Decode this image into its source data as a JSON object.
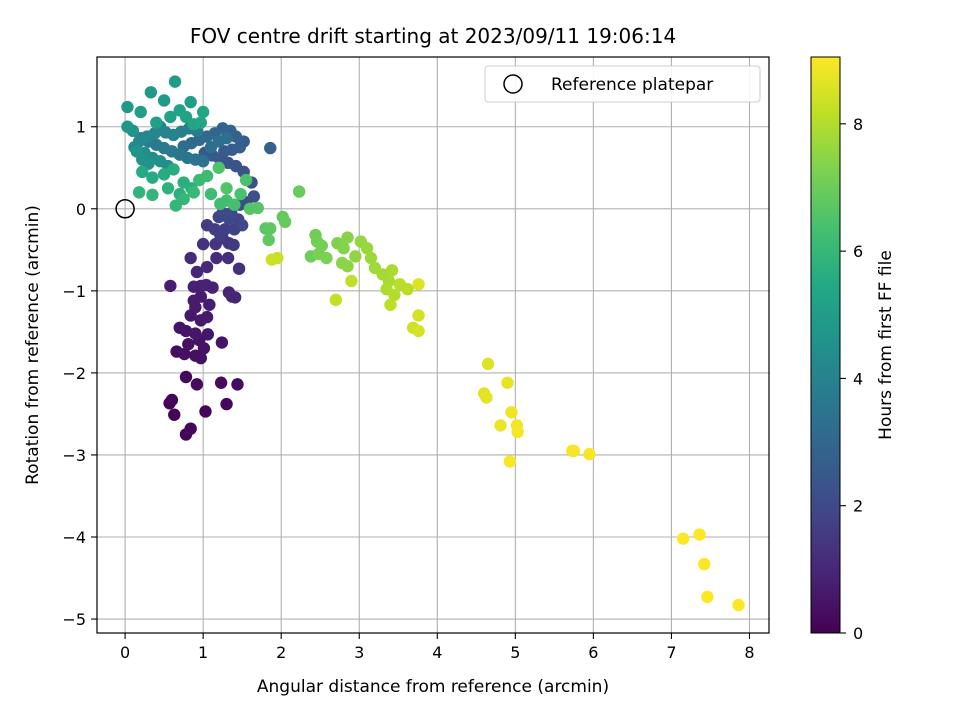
{
  "chart_data": {
    "type": "scatter",
    "title": "FOV centre drift starting at 2023/09/11 19:06:14",
    "xlabel": "Angular distance from reference (arcmin)",
    "ylabel": "Rotation from reference (arcmin)",
    "colorbar_label": "Hours from first FF file",
    "xlim": [
      -0.36,
      8.25
    ],
    "ylim": [
      -5.17,
      1.85
    ],
    "x_ticks": [
      0,
      1,
      2,
      3,
      4,
      5,
      6,
      7,
      8
    ],
    "y_ticks": [
      -5,
      -4,
      -3,
      -2,
      -1,
      0,
      1
    ],
    "colorbar_range": [
      0,
      9.05
    ],
    "colorbar_ticks": [
      0,
      2,
      4,
      6,
      8
    ],
    "colormap": "viridis",
    "grid": true,
    "legend_position": "top-right",
    "legend": [
      {
        "label": "Reference platepar",
        "marker": "open-circle",
        "x": 0,
        "y": 0
      }
    ],
    "series": [
      {
        "points": [
          [
            0.63,
            -2.51,
            0.1
          ],
          [
            0.78,
            -2.75,
            0.1
          ],
          [
            0.84,
            -2.68,
            0.15
          ],
          [
            1.03,
            -2.47,
            0.15
          ],
          [
            0.57,
            -2.37,
            0.1
          ],
          [
            0.6,
            -2.33,
            0.15
          ],
          [
            1.3,
            -2.38,
            0.2
          ],
          [
            0.78,
            -2.05,
            0.2
          ],
          [
            0.92,
            -2.14,
            0.25
          ],
          [
            1.23,
            -2.12,
            0.25
          ],
          [
            1.44,
            -2.14,
            0.3
          ],
          [
            0.66,
            -1.74,
            0.3
          ],
          [
            0.76,
            -1.77,
            0.35
          ],
          [
            0.9,
            -1.79,
            0.35
          ],
          [
            0.97,
            -1.82,
            0.4
          ],
          [
            1.01,
            -1.7,
            0.45
          ],
          [
            0.81,
            -1.65,
            0.4
          ],
          [
            0.95,
            -1.6,
            0.45
          ],
          [
            1.24,
            -1.63,
            0.5
          ],
          [
            0.7,
            -1.45,
            0.5
          ],
          [
            0.78,
            -1.49,
            0.5
          ],
          [
            0.9,
            -1.52,
            0.55
          ],
          [
            1.06,
            -1.53,
            0.55
          ],
          [
            0.97,
            -1.36,
            0.6
          ],
          [
            0.84,
            -1.3,
            0.6
          ],
          [
            0.9,
            -1.2,
            0.65
          ],
          [
            1.05,
            -1.32,
            0.65
          ],
          [
            0.88,
            -1.12,
            0.7
          ],
          [
            0.97,
            -1.07,
            0.7
          ],
          [
            1.08,
            -1.17,
            0.75
          ],
          [
            0.58,
            -0.94,
            0.75
          ],
          [
            0.88,
            -0.95,
            0.8
          ],
          [
            0.97,
            -0.94,
            0.8
          ],
          [
            1.04,
            -0.93,
            0.85
          ],
          [
            1.12,
            -0.96,
            0.85
          ],
          [
            1.33,
            -1.02,
            0.9
          ],
          [
            1.41,
            -1.08,
            0.9
          ],
          [
            1.37,
            -1.07,
            0.95
          ],
          [
            0.92,
            -0.77,
            1.0
          ],
          [
            1.05,
            -0.71,
            1.05
          ],
          [
            0.84,
            -0.6,
            1.1
          ],
          [
            1.17,
            -0.6,
            1.15
          ],
          [
            1.32,
            -0.6,
            1.2
          ],
          [
            1.46,
            -0.73,
            1.25
          ],
          [
            1.0,
            -0.43,
            1.3
          ],
          [
            1.16,
            -0.43,
            1.35
          ],
          [
            1.25,
            -0.36,
            1.4
          ],
          [
            1.33,
            -0.42,
            1.45
          ],
          [
            1.39,
            -0.44,
            1.5
          ],
          [
            1.05,
            -0.2,
            1.55
          ],
          [
            1.15,
            -0.25,
            1.6
          ],
          [
            1.22,
            -0.32,
            1.65
          ],
          [
            1.28,
            -0.25,
            1.7
          ],
          [
            1.4,
            -0.25,
            1.75
          ],
          [
            1.45,
            -0.13,
            1.8
          ],
          [
            1.2,
            -0.1,
            1.85
          ],
          [
            1.33,
            -0.12,
            1.9
          ],
          [
            1.5,
            -0.2,
            1.95
          ],
          [
            1.25,
            -0.05,
            2.0
          ],
          [
            1.36,
            -0.05,
            2.05
          ],
          [
            1.47,
            0.05,
            2.1
          ],
          [
            1.55,
            0.08,
            2.15
          ],
          [
            1.65,
            0.15,
            2.2
          ],
          [
            1.62,
            0.32,
            2.25
          ],
          [
            1.52,
            0.45,
            2.3
          ],
          [
            1.42,
            0.52,
            2.35
          ],
          [
            1.32,
            0.56,
            2.4
          ],
          [
            1.22,
            0.6,
            2.45
          ],
          [
            1.12,
            0.65,
            2.5
          ],
          [
            1.02,
            0.68,
            2.55
          ],
          [
            1.27,
            0.7,
            2.6
          ],
          [
            1.37,
            0.72,
            2.65
          ],
          [
            1.47,
            0.75,
            2.7
          ],
          [
            1.52,
            0.82,
            2.75
          ],
          [
            1.86,
            0.74,
            2.8
          ],
          [
            1.42,
            0.88,
            2.85
          ],
          [
            1.35,
            0.95,
            2.9
          ],
          [
            1.25,
            0.98,
            2.95
          ],
          [
            1.15,
            0.92,
            3.0
          ],
          [
            1.05,
            0.88,
            3.05
          ],
          [
            0.95,
            0.84,
            3.1
          ],
          [
            0.85,
            0.8,
            3.15
          ],
          [
            0.75,
            0.76,
            3.2
          ],
          [
            1.1,
            0.75,
            3.25
          ],
          [
            1.2,
            0.82,
            3.3
          ],
          [
            1.3,
            0.86,
            3.35
          ],
          [
            0.9,
            0.6,
            3.4
          ],
          [
            1.0,
            0.58,
            3.45
          ],
          [
            0.8,
            0.62,
            3.5
          ],
          [
            0.7,
            0.66,
            3.55
          ],
          [
            0.6,
            0.7,
            3.6
          ],
          [
            0.5,
            0.74,
            3.65
          ],
          [
            0.4,
            0.78,
            3.7
          ],
          [
            0.3,
            0.82,
            3.75
          ],
          [
            0.2,
            0.86,
            3.8
          ],
          [
            0.92,
            0.95,
            3.85
          ],
          [
            0.82,
            0.98,
            3.9
          ],
          [
            0.72,
            0.94,
            3.95
          ],
          [
            0.62,
            0.9,
            4.0
          ],
          [
            0.52,
            0.93,
            4.05
          ],
          [
            0.45,
            1.0,
            4.1
          ],
          [
            0.38,
            0.92,
            4.15
          ],
          [
            0.28,
            0.88,
            4.2
          ],
          [
            0.18,
            0.82,
            4.25
          ],
          [
            0.12,
            0.75,
            4.3
          ],
          [
            0.25,
            0.68,
            4.35
          ],
          [
            0.35,
            0.62,
            4.4
          ],
          [
            0.45,
            0.58,
            4.45
          ],
          [
            0.55,
            0.52,
            4.5
          ],
          [
            0.3,
            0.55,
            4.55
          ],
          [
            0.22,
            0.6,
            4.6
          ],
          [
            0.15,
            0.7,
            4.65
          ],
          [
            0.1,
            0.95,
            4.7
          ],
          [
            0.03,
            1.0,
            4.75
          ],
          [
            0.03,
            1.24,
            4.8
          ],
          [
            0.33,
            1.42,
            4.85
          ],
          [
            0.5,
            1.32,
            4.9
          ],
          [
            0.64,
            1.55,
            4.95
          ],
          [
            0.84,
            1.3,
            5.0
          ],
          [
            0.2,
            1.18,
            5.05
          ],
          [
            0.4,
            1.05,
            5.1
          ],
          [
            0.58,
            1.12,
            5.15
          ],
          [
            0.7,
            1.2,
            5.2
          ],
          [
            0.78,
            1.12,
            5.25
          ],
          [
            0.88,
            1.03,
            5.3
          ],
          [
            0.97,
            1.05,
            5.35
          ],
          [
            1.0,
            1.18,
            5.4
          ],
          [
            0.22,
            0.45,
            5.45
          ],
          [
            0.35,
            0.38,
            5.5
          ],
          [
            0.5,
            0.42,
            5.55
          ],
          [
            0.62,
            0.48,
            5.6
          ],
          [
            0.75,
            0.32,
            5.65
          ],
          [
            0.85,
            0.25,
            5.7
          ],
          [
            0.7,
            0.18,
            5.75
          ],
          [
            0.55,
            0.25,
            5.8
          ],
          [
            0.18,
            0.2,
            5.85
          ],
          [
            0.35,
            0.17,
            5.9
          ],
          [
            0.65,
            0.04,
            5.95
          ],
          [
            0.75,
            0.12,
            6.0
          ],
          [
            0.88,
            0.2,
            6.05
          ],
          [
            0.95,
            0.35,
            6.1
          ],
          [
            1.05,
            0.4,
            6.15
          ],
          [
            1.1,
            0.18,
            6.2
          ],
          [
            1.22,
            0.06,
            6.25
          ],
          [
            1.3,
            0.1,
            6.3
          ],
          [
            1.4,
            0.05,
            6.35
          ],
          [
            1.48,
            0.18,
            6.4
          ],
          [
            1.55,
            0.35,
            6.45
          ],
          [
            1.2,
            0.5,
            6.5
          ],
          [
            1.3,
            0.25,
            6.55
          ],
          [
            1.6,
            0.0,
            6.6
          ],
          [
            1.7,
            0.01,
            6.65
          ],
          [
            1.8,
            -0.24,
            6.7
          ],
          [
            1.86,
            -0.24,
            6.75
          ],
          [
            1.84,
            -0.38,
            6.8
          ],
          [
            2.02,
            -0.1,
            6.85
          ],
          [
            2.05,
            -0.16,
            6.9
          ],
          [
            2.23,
            0.21,
            6.95
          ],
          [
            2.38,
            -0.58,
            7.0
          ],
          [
            2.44,
            -0.32,
            7.05
          ],
          [
            2.46,
            -0.4,
            7.1
          ],
          [
            2.52,
            -0.45,
            7.15
          ],
          [
            2.48,
            -0.55,
            7.2
          ],
          [
            2.58,
            -0.6,
            7.25
          ],
          [
            2.72,
            -0.42,
            7.3
          ],
          [
            2.8,
            -0.48,
            7.35
          ],
          [
            2.85,
            -0.35,
            7.4
          ],
          [
            2.78,
            -0.66,
            7.45
          ],
          [
            2.85,
            -0.7,
            7.5
          ],
          [
            2.95,
            -0.58,
            7.55
          ],
          [
            3.02,
            -0.4,
            7.6
          ],
          [
            3.1,
            -0.48,
            7.65
          ],
          [
            3.15,
            -0.6,
            7.7
          ],
          [
            3.2,
            -0.72,
            7.75
          ],
          [
            3.3,
            -0.8,
            7.8
          ],
          [
            3.38,
            -0.88,
            7.85
          ],
          [
            3.42,
            -0.75,
            7.9
          ],
          [
            3.35,
            -0.98,
            7.95
          ],
          [
            3.45,
            -1.05,
            8.0
          ],
          [
            3.52,
            -0.92,
            8.05
          ],
          [
            3.62,
            -0.98,
            8.1
          ],
          [
            3.4,
            -1.17,
            8.15
          ],
          [
            2.9,
            -0.88,
            8.2
          ],
          [
            2.7,
            -1.11,
            8.25
          ],
          [
            1.95,
            -0.6,
            8.3
          ],
          [
            1.88,
            -0.62,
            8.35
          ],
          [
            3.69,
            -1.45,
            8.4
          ],
          [
            3.76,
            -1.3,
            8.45
          ],
          [
            3.76,
            -1.49,
            8.5
          ],
          [
            3.76,
            -0.92,
            8.55
          ],
          [
            4.65,
            -1.89,
            8.6
          ],
          [
            4.6,
            -2.25,
            8.65
          ],
          [
            4.63,
            -2.3,
            8.7
          ],
          [
            4.9,
            -2.12,
            8.75
          ],
          [
            4.81,
            -2.64,
            8.8
          ],
          [
            4.95,
            -2.48,
            8.85
          ],
          [
            5.02,
            -2.64,
            8.9
          ],
          [
            5.03,
            -2.72,
            8.95
          ],
          [
            4.93,
            -3.08,
            9.0
          ],
          [
            5.73,
            -2.95,
            8.92
          ],
          [
            5.75,
            -2.95,
            8.96
          ],
          [
            5.95,
            -2.99,
            8.98
          ],
          [
            7.15,
            -4.02,
            9.02
          ],
          [
            7.36,
            -3.97,
            9.04
          ],
          [
            7.42,
            -4.33,
            9.04
          ],
          [
            7.46,
            -4.73,
            9.05
          ],
          [
            7.86,
            -4.83,
            9.05
          ]
        ]
      }
    ]
  }
}
